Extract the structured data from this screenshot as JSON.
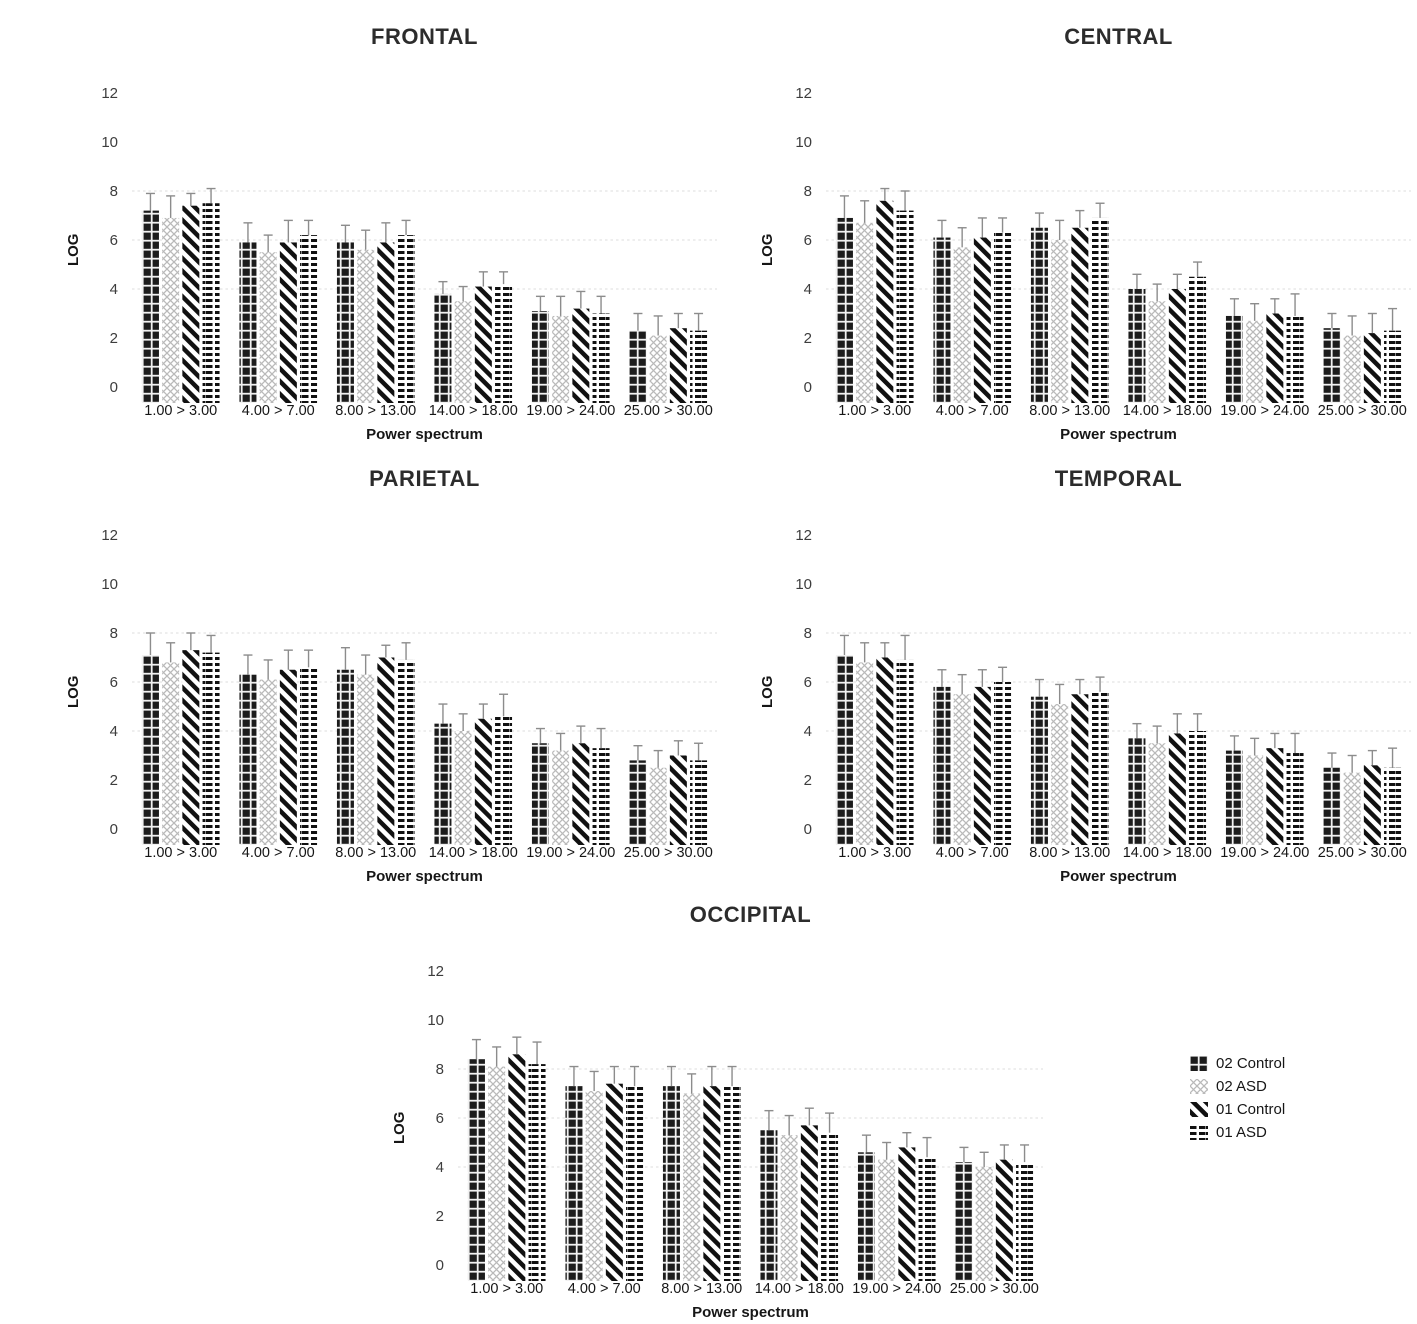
{
  "figure": {
    "legend": {
      "items": [
        {
          "label": "02 Control",
          "pattern": "dark-blocks"
        },
        {
          "label": "02 ASD",
          "pattern": "light-crosshatch"
        },
        {
          "label": "01 Control",
          "pattern": "diagonal-stripes"
        },
        {
          "label": "01 ASD",
          "pattern": "horizontal-dashes"
        }
      ]
    },
    "colors": {
      "bar_dark": "#1c1c1c",
      "hatch_light": "#b9b9b9",
      "text": "#161616",
      "grid": "#dcdcdc",
      "error_bar": "#8c8c8c",
      "background": "#ffffff"
    }
  },
  "chart_data": [
    {
      "id": "frontal",
      "type": "bar",
      "title": "FRONTAL",
      "xlabel": "Power spectrum",
      "ylabel": "LOG",
      "ylim": [
        0,
        12
      ],
      "yticks": [
        0,
        2,
        4,
        6,
        8,
        10,
        12
      ],
      "gridlines_at": [
        4,
        6,
        8
      ],
      "categories": [
        "1.00 > 3.00",
        "4.00 > 7.00",
        "8.00 > 13.00",
        "14.00 > 18.00",
        "19.00 > 24.00",
        "25.00 > 30.00"
      ],
      "series": [
        {
          "name": "02 Control",
          "pattern": "dark-blocks",
          "values": [
            7.2,
            5.9,
            5.9,
            3.8,
            3.1,
            2.3
          ],
          "errors": [
            0.7,
            0.8,
            0.7,
            0.5,
            0.6,
            0.7
          ]
        },
        {
          "name": "02 ASD",
          "pattern": "light-crosshatch",
          "values": [
            6.9,
            5.5,
            5.6,
            3.5,
            2.9,
            2.1
          ],
          "errors": [
            0.9,
            0.7,
            0.8,
            0.6,
            0.8,
            0.8
          ]
        },
        {
          "name": "01 Control",
          "pattern": "diagonal-stripes",
          "values": [
            7.4,
            5.9,
            5.9,
            4.1,
            3.2,
            2.4
          ],
          "errors": [
            0.5,
            0.9,
            0.8,
            0.6,
            0.7,
            0.6
          ]
        },
        {
          "name": "01 ASD",
          "pattern": "horizontal-dashes",
          "values": [
            7.5,
            6.2,
            6.2,
            4.2,
            3.0,
            2.3
          ],
          "errors": [
            0.6,
            0.6,
            0.6,
            0.5,
            0.7,
            0.7
          ]
        }
      ]
    },
    {
      "id": "central",
      "type": "bar",
      "title": "CENTRAL",
      "xlabel": "Power spectrum",
      "ylabel": "LOG",
      "ylim": [
        0,
        12
      ],
      "yticks": [
        0,
        2,
        4,
        6,
        8,
        10,
        12
      ],
      "gridlines_at": [
        4,
        6,
        8
      ],
      "categories": [
        "1.00 > 3.00",
        "4.00 > 7.00",
        "8.00 > 13.00",
        "14.00 > 18.00",
        "19.00 > 24.00",
        "25.00 > 30.00"
      ],
      "series": [
        {
          "name": "02 Control",
          "pattern": "dark-blocks",
          "values": [
            6.9,
            6.1,
            6.5,
            4.0,
            2.9,
            2.4
          ],
          "errors": [
            0.9,
            0.7,
            0.6,
            0.6,
            0.7,
            0.6
          ]
        },
        {
          "name": "02 ASD",
          "pattern": "light-crosshatch",
          "values": [
            6.7,
            5.7,
            6.0,
            3.5,
            2.7,
            2.1
          ],
          "errors": [
            0.9,
            0.8,
            0.8,
            0.7,
            0.7,
            0.8
          ]
        },
        {
          "name": "01 Control",
          "pattern": "diagonal-stripes",
          "values": [
            7.6,
            6.1,
            6.5,
            4.0,
            3.0,
            2.2
          ],
          "errors": [
            0.5,
            0.8,
            0.7,
            0.6,
            0.6,
            0.8
          ]
        },
        {
          "name": "01 ASD",
          "pattern": "horizontal-dashes",
          "values": [
            7.2,
            6.3,
            6.9,
            4.5,
            2.9,
            2.3
          ],
          "errors": [
            0.8,
            0.6,
            0.6,
            0.6,
            0.9,
            0.9
          ]
        }
      ]
    },
    {
      "id": "parietal",
      "type": "bar",
      "title": "PARIETAL",
      "xlabel": "Power spectrum",
      "ylabel": "LOG",
      "ylim": [
        0,
        12
      ],
      "yticks": [
        0,
        2,
        4,
        6,
        8,
        10,
        12
      ],
      "gridlines_at": [
        4,
        6,
        8
      ],
      "categories": [
        "1.00 > 3.00",
        "4.00 > 7.00",
        "8.00 > 13.00",
        "14.00 > 18.00",
        "19.00 > 24.00",
        "25.00 > 30.00"
      ],
      "series": [
        {
          "name": "02 Control",
          "pattern": "dark-blocks",
          "values": [
            7.1,
            6.3,
            6.5,
            4.3,
            3.5,
            2.8
          ],
          "errors": [
            0.9,
            0.8,
            0.9,
            0.8,
            0.6,
            0.6
          ]
        },
        {
          "name": "02 ASD",
          "pattern": "light-crosshatch",
          "values": [
            6.8,
            6.1,
            6.3,
            4.0,
            3.2,
            2.5
          ],
          "errors": [
            0.8,
            0.8,
            0.8,
            0.7,
            0.7,
            0.7
          ]
        },
        {
          "name": "01 Control",
          "pattern": "diagonal-stripes",
          "values": [
            7.3,
            6.5,
            7.0,
            4.5,
            3.5,
            3.0
          ],
          "errors": [
            0.7,
            0.8,
            0.5,
            0.6,
            0.7,
            0.6
          ]
        },
        {
          "name": "01 ASD",
          "pattern": "horizontal-dashes",
          "values": [
            7.2,
            6.6,
            6.9,
            4.6,
            3.3,
            2.8
          ],
          "errors": [
            0.7,
            0.7,
            0.7,
            0.9,
            0.8,
            0.7
          ]
        }
      ]
    },
    {
      "id": "temporal",
      "type": "bar",
      "title": "TEMPORAL",
      "xlabel": "Power spectrum",
      "ylabel": "LOG",
      "ylim": [
        0,
        12
      ],
      "yticks": [
        0,
        2,
        4,
        6,
        8,
        10,
        12
      ],
      "gridlines_at": [
        4,
        6,
        8
      ],
      "categories": [
        "1.00 > 3.00",
        "4.00 > 7.00",
        "8.00 > 13.00",
        "14.00 > 18.00",
        "19.00 > 24.00",
        "25.00 > 30.00"
      ],
      "series": [
        {
          "name": "02 Control",
          "pattern": "dark-blocks",
          "values": [
            7.1,
            5.8,
            5.4,
            3.7,
            3.2,
            2.5
          ],
          "errors": [
            0.8,
            0.7,
            0.7,
            0.6,
            0.6,
            0.6
          ]
        },
        {
          "name": "02 ASD",
          "pattern": "light-crosshatch",
          "values": [
            6.8,
            5.5,
            5.1,
            3.5,
            3.0,
            2.3
          ],
          "errors": [
            0.8,
            0.8,
            0.8,
            0.7,
            0.7,
            0.7
          ]
        },
        {
          "name": "01 Control",
          "pattern": "diagonal-stripes",
          "values": [
            7.0,
            5.8,
            5.5,
            3.9,
            3.3,
            2.6
          ],
          "errors": [
            0.6,
            0.7,
            0.6,
            0.8,
            0.6,
            0.6
          ]
        },
        {
          "name": "01 ASD",
          "pattern": "horizontal-dashes",
          "values": [
            6.9,
            6.0,
            5.6,
            4.0,
            3.1,
            2.5
          ],
          "errors": [
            1.0,
            0.6,
            0.6,
            0.7,
            0.8,
            0.8
          ]
        }
      ]
    },
    {
      "id": "occipital",
      "type": "bar",
      "title": "OCCIPITAL",
      "xlabel": "Power spectrum",
      "ylabel": "LOG",
      "ylim": [
        0,
        12
      ],
      "yticks": [
        0,
        2,
        4,
        6,
        8,
        10,
        12
      ],
      "gridlines_at": [
        4,
        6,
        8
      ],
      "categories": [
        "1.00 > 3.00",
        "4.00 > 7.00",
        "8.00 > 13.00",
        "14.00 > 18.00",
        "19.00 > 24.00",
        "25.00 > 30.00"
      ],
      "series": [
        {
          "name": "02 Control",
          "pattern": "dark-blocks",
          "values": [
            8.4,
            7.3,
            7.3,
            5.5,
            4.6,
            4.2
          ],
          "errors": [
            0.8,
            0.8,
            0.8,
            0.8,
            0.7,
            0.6
          ]
        },
        {
          "name": "02 ASD",
          "pattern": "light-crosshatch",
          "values": [
            8.1,
            7.1,
            7.0,
            5.3,
            4.3,
            4.0
          ],
          "errors": [
            0.8,
            0.8,
            0.8,
            0.8,
            0.7,
            0.6
          ]
        },
        {
          "name": "01 Control",
          "pattern": "diagonal-stripes",
          "values": [
            8.6,
            7.4,
            7.3,
            5.7,
            4.8,
            4.3
          ],
          "errors": [
            0.7,
            0.7,
            0.8,
            0.7,
            0.6,
            0.6
          ]
        },
        {
          "name": "01 ASD",
          "pattern": "horizontal-dashes",
          "values": [
            8.2,
            7.3,
            7.3,
            5.4,
            4.4,
            4.2
          ],
          "errors": [
            0.9,
            0.8,
            0.8,
            0.8,
            0.8,
            0.7
          ]
        }
      ]
    }
  ]
}
